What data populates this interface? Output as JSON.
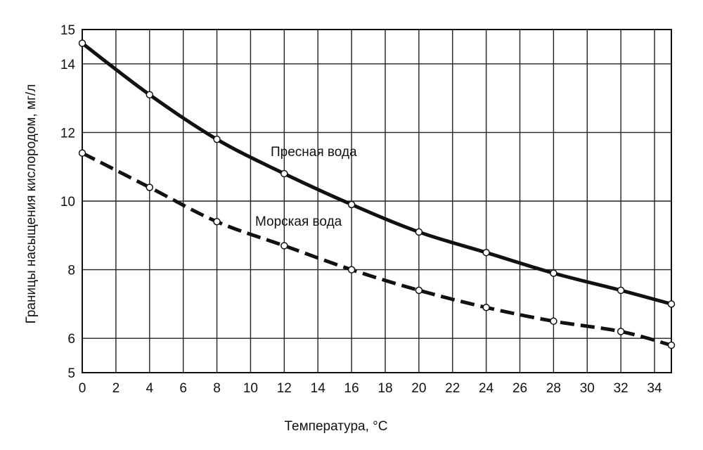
{
  "chart_data": {
    "type": "line",
    "title": "",
    "xlabel": "Температура, °С",
    "ylabel": "Границы насыщения кислородом, мг/л",
    "xlim": [
      0,
      35
    ],
    "ylim": [
      5,
      15
    ],
    "xticks": [
      0,
      2,
      4,
      6,
      8,
      10,
      12,
      14,
      16,
      18,
      20,
      22,
      24,
      26,
      28,
      30,
      32,
      34
    ],
    "yticks": [
      5,
      6,
      8,
      10,
      12,
      14,
      15
    ],
    "grid": true,
    "legend": "none",
    "series": [
      {
        "name": "Пресная вода",
        "style": "solid",
        "color": "#111111",
        "x": [
          0,
          4,
          8,
          12,
          16,
          20,
          24,
          28,
          32,
          35
        ],
        "y": [
          14.6,
          13.1,
          11.8,
          10.8,
          9.9,
          9.1,
          8.5,
          7.9,
          7.4,
          7.0
        ]
      },
      {
        "name": "Морская вода",
        "style": "dashed",
        "color": "#111111",
        "x": [
          0,
          4,
          8,
          12,
          16,
          20,
          24,
          28,
          32,
          35
        ],
        "y": [
          11.4,
          10.4,
          9.4,
          8.7,
          8.0,
          7.4,
          6.9,
          6.5,
          6.2,
          5.8
        ]
      }
    ]
  }
}
